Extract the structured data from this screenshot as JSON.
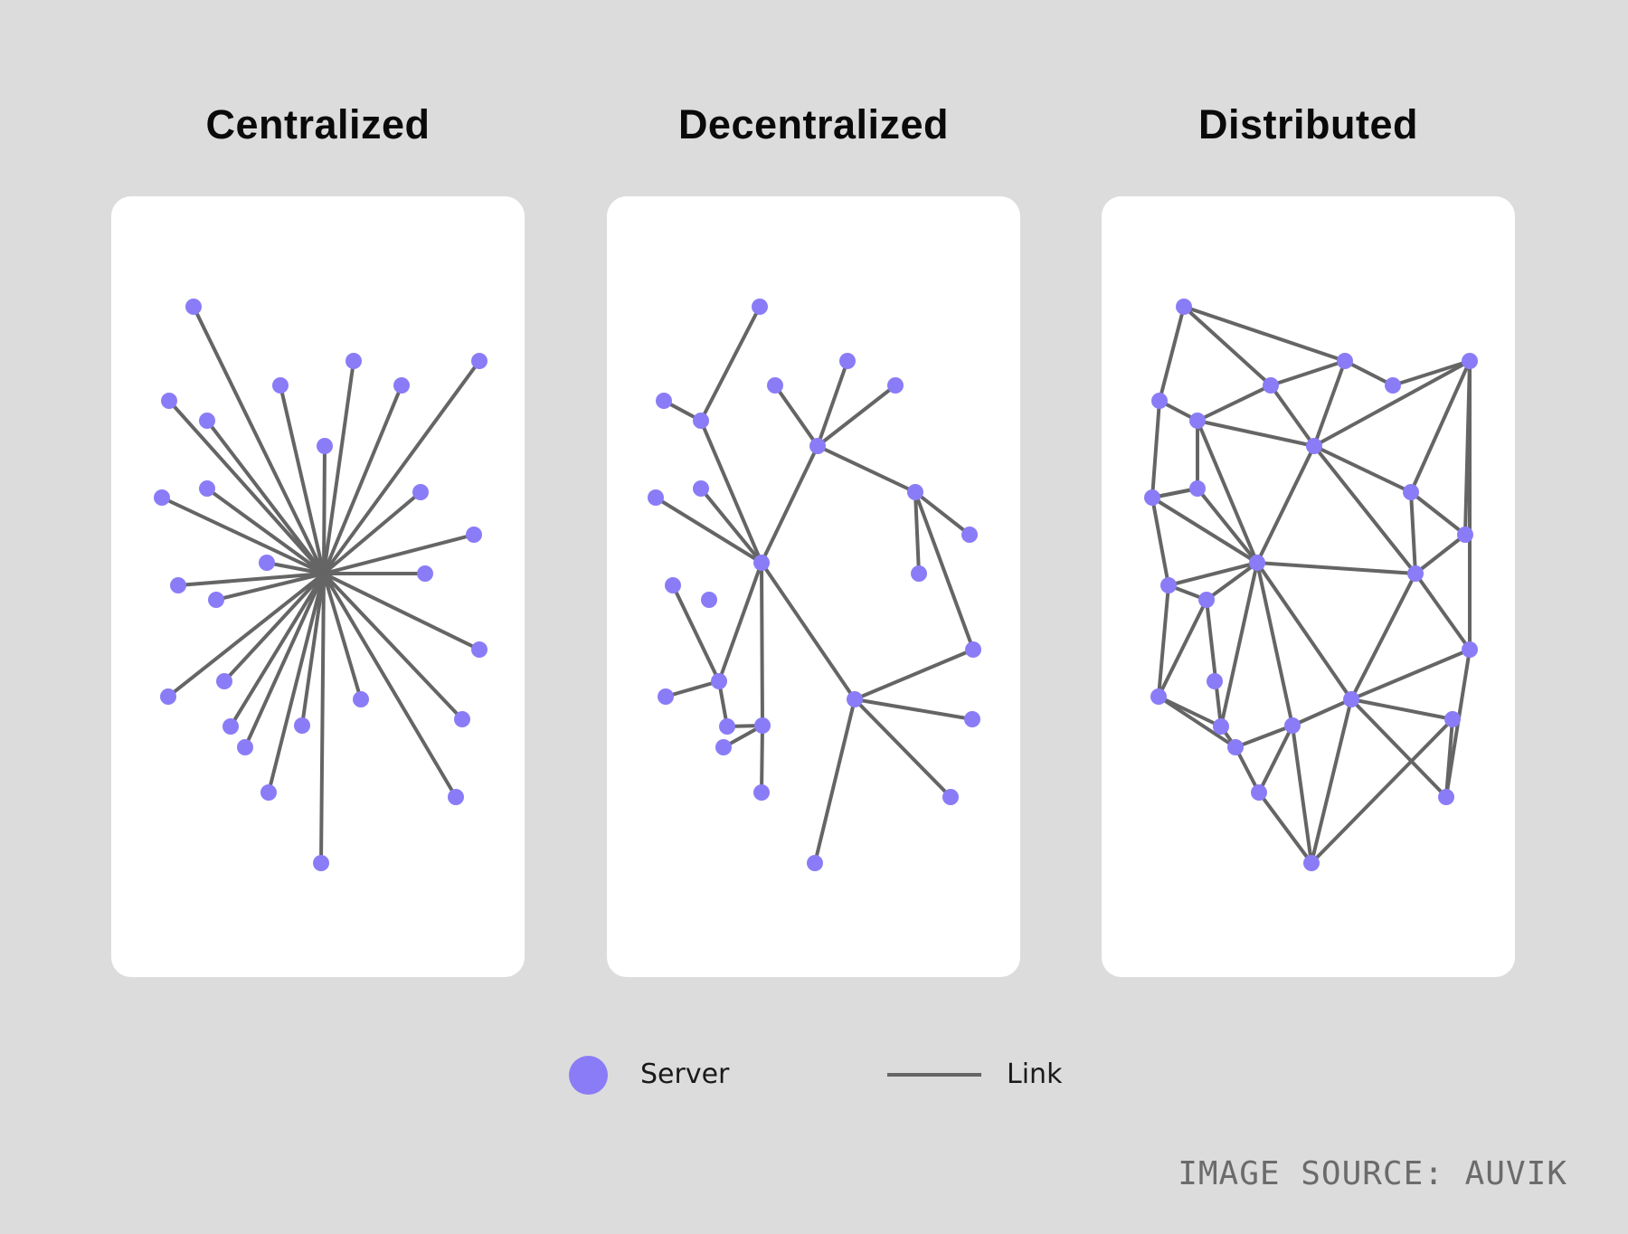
{
  "colors": {
    "background": "#dcdcdc",
    "panel": "#ffffff",
    "server": "#8a7cf7",
    "link": "#656565",
    "title": "#0a0a0a"
  },
  "panels": [
    {
      "title": "Centralized",
      "topology": "star"
    },
    {
      "title": "Decentralized",
      "topology": "tree-of-hubs"
    },
    {
      "title": "Distributed",
      "topology": "mesh"
    }
  ],
  "legend": {
    "server_label": "Server",
    "link_label": "Link",
    "server_icon": "circle",
    "link_icon": "line"
  },
  "source": "IMAGE SOURCE: AUVIK"
}
